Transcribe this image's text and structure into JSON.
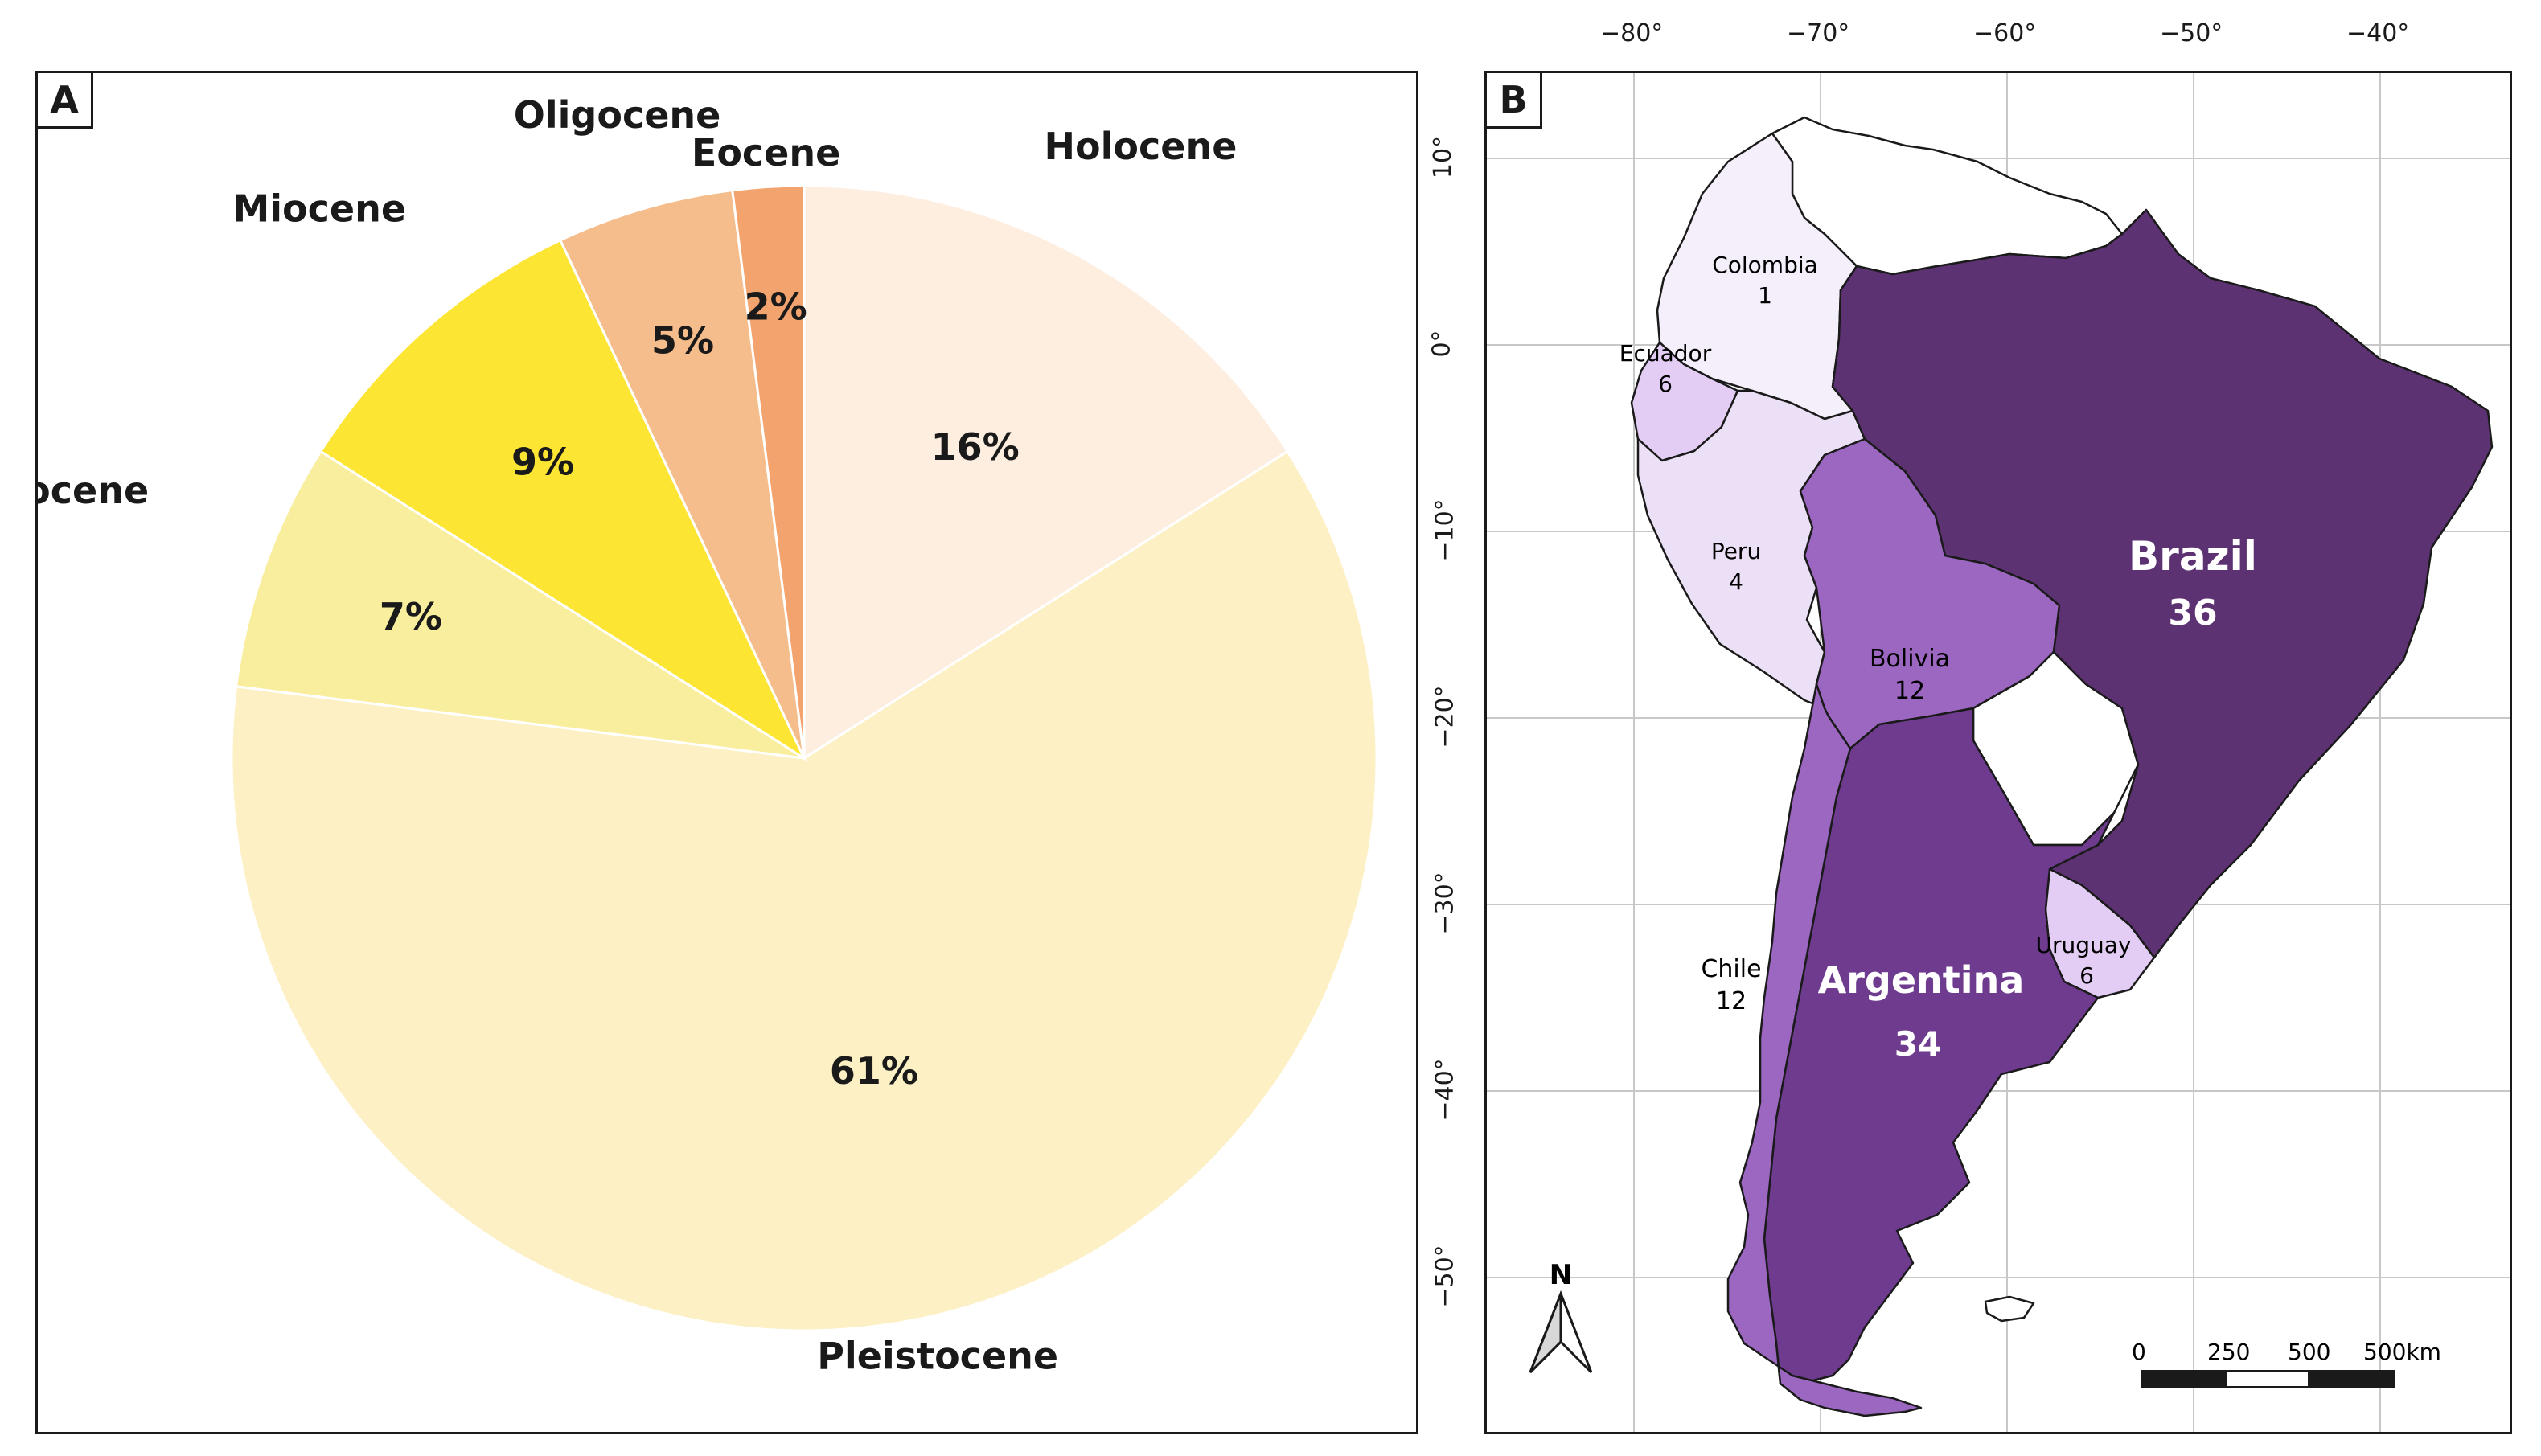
{
  "panel_a": {
    "tag": "A"
  },
  "panel_b": {
    "tag": "B"
  },
  "chart_data": [
    {
      "type": "pie",
      "title": "",
      "start": "top, clockwise",
      "slices": [
        {
          "name": "Holocene",
          "label": "16%",
          "value": 16,
          "color": "#fdeee0"
        },
        {
          "name": "Pleistocene",
          "label": "61%",
          "value": 61,
          "color": "#fdf0c4"
        },
        {
          "name": "Pliocene",
          "label": "7%",
          "value": 7,
          "color": "#f9ee9d"
        },
        {
          "name": "Miocene",
          "label": "9%",
          "value": 9,
          "color": "#fde534"
        },
        {
          "name": "Oligocene",
          "label": "5%",
          "value": 5,
          "color": "#f5bd8b"
        },
        {
          "name": "Eocene",
          "label": "2%",
          "value": 2,
          "color": "#f2a36e"
        }
      ]
    },
    {
      "type": "choropleth-map",
      "title": "",
      "longitude_ticks": [
        "−80°",
        "−70°",
        "−60°",
        "−50°",
        "−40°"
      ],
      "latitude_ticks": [
        "10°",
        "0°",
        "−10°",
        "−20°",
        "−30°",
        "−40°",
        "−50°"
      ],
      "countries": [
        {
          "name": "Colombia",
          "value": "1",
          "color": "#f5eefb"
        },
        {
          "name": "Ecuador",
          "value": "6",
          "color": "#e3cdf4"
        },
        {
          "name": "Peru",
          "value": "4",
          "color": "#ece0f7"
        },
        {
          "name": "Bolivia",
          "value": "12",
          "color": "#9b67c1"
        },
        {
          "name": "Chile",
          "value": "12",
          "color": "#9b67c1"
        },
        {
          "name": "Brazil",
          "value": "36",
          "color": "#5d3273"
        },
        {
          "name": "Argentina",
          "value": "34",
          "color": "#6e3b8f"
        },
        {
          "name": "Uruguay",
          "value": "6",
          "color": "#e3cdf4"
        }
      ],
      "north_arrow": "N",
      "scale_bar": {
        "ticks": [
          "0",
          "250",
          "500",
          "500km"
        ]
      }
    }
  ]
}
